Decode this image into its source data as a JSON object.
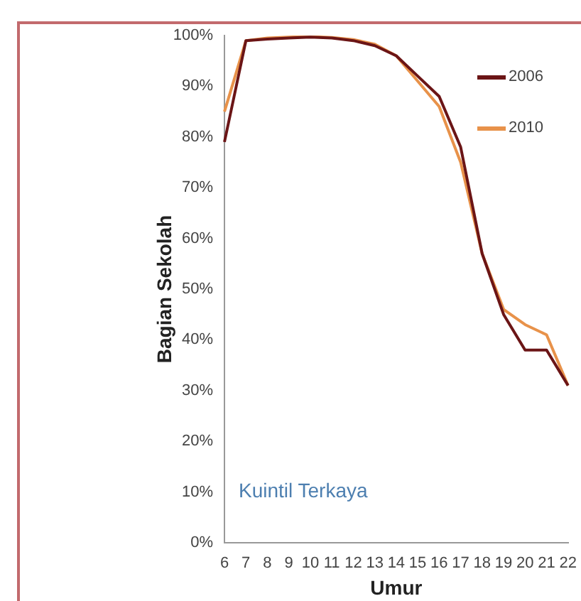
{
  "chart_data": {
    "type": "line",
    "xlabel": "Umur",
    "ylabel": "Bagian Sekolah",
    "annotations": [
      "Kuintil Terkaya"
    ],
    "categories": [
      "6",
      "7",
      "8",
      "9",
      "10",
      "11",
      "12",
      "13",
      "14",
      "15",
      "16",
      "17",
      "18",
      "19",
      "20",
      "21",
      "22"
    ],
    "ylim": [
      0,
      100
    ],
    "yticks": [
      {
        "value": 0,
        "label": "0%"
      },
      {
        "value": 10,
        "label": "10%"
      },
      {
        "value": 20,
        "label": "20%"
      },
      {
        "value": 30,
        "label": "30%"
      },
      {
        "value": 40,
        "label": "40%"
      },
      {
        "value": 50,
        "label": "50%"
      },
      {
        "value": 60,
        "label": "60%"
      },
      {
        "value": 70,
        "label": "70%"
      },
      {
        "value": 80,
        "label": "80%"
      },
      {
        "value": 90,
        "label": "90%"
      },
      {
        "value": 100,
        "label": "100%"
      }
    ],
    "series": [
      {
        "name": "2006",
        "color": "#6b1516",
        "values": [
          79,
          99,
          99.3,
          99.5,
          99.7,
          99.5,
          99,
          98,
          96,
          92,
          88,
          78,
          57,
          45,
          38,
          38,
          31
        ]
      },
      {
        "name": "2010",
        "color": "#e8924a",
        "values": [
          85,
          99,
          99.5,
          99.7,
          99.8,
          99.6,
          99.2,
          98.3,
          96,
          91,
          86,
          75,
          57,
          46,
          43,
          41,
          31
        ]
      }
    ],
    "grid": false,
    "legend": "top right",
    "marker": "none",
    "line_style": "solid"
  }
}
